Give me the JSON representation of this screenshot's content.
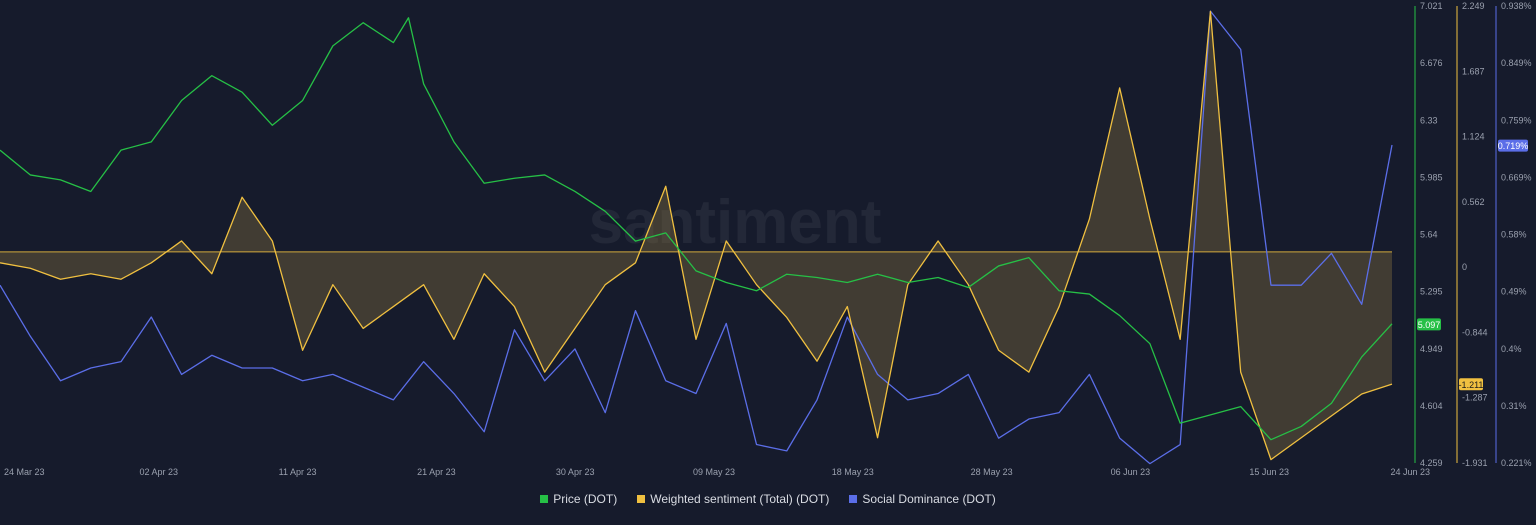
{
  "chart_data": {
    "type": "line",
    "watermark": "santiment",
    "x_ticks": [
      "24 Mar 23",
      "02 Apr 23",
      "11 Apr 23",
      "21 Apr 23",
      "30 Apr 23",
      "09 May 23",
      "18 May 23",
      "28 May 23",
      "06 Jun 23",
      "15 Jun 23",
      "24 Jun 23"
    ],
    "x_range": [
      "2023-03-24",
      "2023-06-24"
    ],
    "axes": {
      "price": {
        "ticks": [
          "7.021",
          "6.676",
          "6.33",
          "5.985",
          "5.64",
          "5.295",
          "4.949",
          "4.604",
          "4.259"
        ],
        "range": [
          4.259,
          7.021
        ],
        "current_label": "5.097",
        "current_value": 5.097
      },
      "sentiment": {
        "ticks": [
          "2.249",
          "1.687",
          "1.124",
          "0.562",
          "0",
          "-0.844",
          "-1.287",
          "-1.931"
        ],
        "range": [
          -1.931,
          2.249
        ],
        "current_label": "-1.211",
        "current_value": -1.211
      },
      "dominance": {
        "ticks": [
          "0.938%",
          "0.849%",
          "0.759%",
          "0.669%",
          "0.58%",
          "0.49%",
          "0.4%",
          "0.31%",
          "0.221%"
        ],
        "range": [
          0.221,
          0.938
        ],
        "current_label": "0.719%",
        "current_value": 0.719
      }
    },
    "series": [
      {
        "name": "Price (DOT)",
        "axis": "price",
        "color": "#26c046",
        "x": [
          "2023-03-24",
          "2023-03-26",
          "2023-03-28",
          "2023-03-30",
          "2023-04-01",
          "2023-04-03",
          "2023-04-05",
          "2023-04-07",
          "2023-04-09",
          "2023-04-11",
          "2023-04-13",
          "2023-04-15",
          "2023-04-17",
          "2023-04-19",
          "2023-04-20",
          "2023-04-21",
          "2023-04-23",
          "2023-04-25",
          "2023-04-27",
          "2023-04-29",
          "2023-05-01",
          "2023-05-03",
          "2023-05-05",
          "2023-05-07",
          "2023-05-09",
          "2023-05-11",
          "2023-05-13",
          "2023-05-15",
          "2023-05-17",
          "2023-05-19",
          "2023-05-21",
          "2023-05-23",
          "2023-05-25",
          "2023-05-27",
          "2023-05-29",
          "2023-05-31",
          "2023-06-02",
          "2023-06-04",
          "2023-06-06",
          "2023-06-08",
          "2023-06-10",
          "2023-06-12",
          "2023-06-14",
          "2023-06-16",
          "2023-06-18",
          "2023-06-20",
          "2023-06-22",
          "2023-06-24"
        ],
        "values": [
          6.15,
          6.0,
          5.97,
          5.9,
          6.15,
          6.2,
          6.45,
          6.6,
          6.5,
          6.3,
          6.45,
          6.78,
          6.92,
          6.8,
          6.95,
          6.55,
          6.2,
          5.95,
          5.98,
          6.0,
          5.9,
          5.78,
          5.6,
          5.65,
          5.42,
          5.35,
          5.3,
          5.4,
          5.38,
          5.35,
          5.4,
          5.35,
          5.38,
          5.32,
          5.45,
          5.5,
          5.3,
          5.28,
          5.15,
          4.98,
          4.5,
          4.55,
          4.6,
          4.4,
          4.48,
          4.62,
          4.9,
          5.1
        ]
      },
      {
        "name": "Weighted sentiment (Total) (DOT)",
        "axis": "sentiment",
        "color": "#f0c040",
        "x": [
          "2023-03-24",
          "2023-03-26",
          "2023-03-28",
          "2023-03-30",
          "2023-04-01",
          "2023-04-03",
          "2023-04-05",
          "2023-04-07",
          "2023-04-09",
          "2023-04-11",
          "2023-04-13",
          "2023-04-15",
          "2023-04-17",
          "2023-04-19",
          "2023-04-21",
          "2023-04-23",
          "2023-04-25",
          "2023-04-27",
          "2023-04-29",
          "2023-05-01",
          "2023-05-03",
          "2023-05-05",
          "2023-05-07",
          "2023-05-09",
          "2023-05-11",
          "2023-05-13",
          "2023-05-15",
          "2023-05-17",
          "2023-05-19",
          "2023-05-21",
          "2023-05-23",
          "2023-05-25",
          "2023-05-27",
          "2023-05-29",
          "2023-05-31",
          "2023-06-02",
          "2023-06-04",
          "2023-06-06",
          "2023-06-08",
          "2023-06-10",
          "2023-06-12",
          "2023-06-14",
          "2023-06-16",
          "2023-06-18",
          "2023-06-20",
          "2023-06-22",
          "2023-06-24"
        ],
        "values": [
          -0.1,
          -0.15,
          -0.25,
          -0.2,
          -0.25,
          -0.1,
          0.1,
          -0.2,
          0.5,
          0.1,
          -0.9,
          -0.3,
          -0.7,
          -0.5,
          -0.3,
          -0.8,
          -0.2,
          -0.5,
          -1.1,
          -0.7,
          -0.3,
          -0.1,
          0.6,
          -0.8,
          0.1,
          -0.3,
          -0.6,
          -1.0,
          -0.5,
          -1.7,
          -0.3,
          0.1,
          -0.3,
          -0.9,
          -1.1,
          -0.5,
          0.3,
          1.5,
          0.3,
          -0.8,
          2.2,
          -1.1,
          -1.9,
          -1.7,
          -1.5,
          -1.3,
          -1.21
        ]
      },
      {
        "name": "Social Dominance (DOT)",
        "axis": "dominance",
        "color": "#5b6ee8",
        "x": [
          "2023-03-24",
          "2023-03-26",
          "2023-03-28",
          "2023-03-30",
          "2023-04-01",
          "2023-04-03",
          "2023-04-05",
          "2023-04-07",
          "2023-04-09",
          "2023-04-11",
          "2023-04-13",
          "2023-04-15",
          "2023-04-17",
          "2023-04-19",
          "2023-04-21",
          "2023-04-23",
          "2023-04-25",
          "2023-04-27",
          "2023-04-29",
          "2023-05-01",
          "2023-05-03",
          "2023-05-05",
          "2023-05-07",
          "2023-05-09",
          "2023-05-11",
          "2023-05-13",
          "2023-05-15",
          "2023-05-17",
          "2023-05-19",
          "2023-05-21",
          "2023-05-23",
          "2023-05-25",
          "2023-05-27",
          "2023-05-29",
          "2023-05-31",
          "2023-06-02",
          "2023-06-04",
          "2023-06-06",
          "2023-06-08",
          "2023-06-10",
          "2023-06-12",
          "2023-06-14",
          "2023-06-16",
          "2023-06-18",
          "2023-06-20",
          "2023-06-22",
          "2023-06-24"
        ],
        "values": [
          0.5,
          0.42,
          0.35,
          0.37,
          0.38,
          0.45,
          0.36,
          0.39,
          0.37,
          0.37,
          0.35,
          0.36,
          0.34,
          0.32,
          0.38,
          0.33,
          0.27,
          0.43,
          0.35,
          0.4,
          0.3,
          0.46,
          0.35,
          0.33,
          0.44,
          0.25,
          0.24,
          0.32,
          0.45,
          0.36,
          0.32,
          0.33,
          0.36,
          0.26,
          0.29,
          0.3,
          0.36,
          0.26,
          0.22,
          0.25,
          0.93,
          0.87,
          0.5,
          0.5,
          0.55,
          0.47,
          0.72
        ]
      }
    ],
    "legend_position": "bottom-center"
  }
}
